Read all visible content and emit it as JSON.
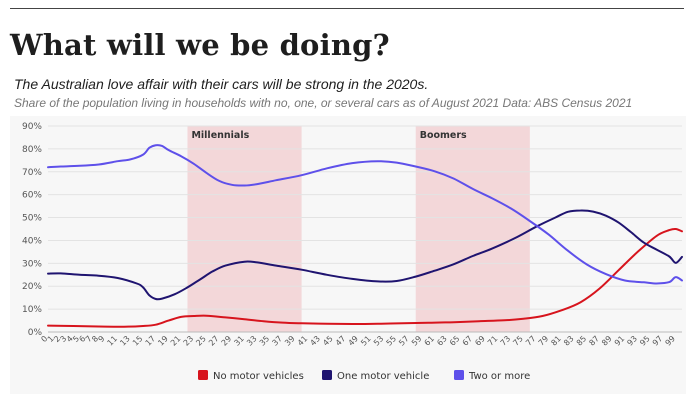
{
  "header": {
    "title": "What will we be doing?",
    "subtitle": "The Australian love affair with their cars will be strong in the 2020s.",
    "description": "Share of the population living in households with no, one, or several cars as of August 2021 Data: ABS Census 2021"
  },
  "chart_data": {
    "type": "line",
    "xlim": [
      0,
      100
    ],
    "ylim": [
      0,
      90
    ],
    "yticks": [
      "0%",
      "10%",
      "20%",
      "30%",
      "40%",
      "50%",
      "60%",
      "70%",
      "80%",
      "90%"
    ],
    "xticks": [
      "0",
      "1",
      "2",
      "3",
      "4",
      "5",
      "6",
      "7",
      "8",
      "9",
      "11",
      "13",
      "15",
      "17",
      "19",
      "21",
      "23",
      "25",
      "27",
      "29",
      "31",
      "33",
      "35",
      "37",
      "39",
      "41",
      "43",
      "45",
      "47",
      "49",
      "51",
      "53",
      "55",
      "57",
      "59",
      "61",
      "63",
      "65",
      "67",
      "69",
      "71",
      "73",
      "75",
      "77",
      "79",
      "81",
      "83",
      "85",
      "87",
      "89",
      "91",
      "93",
      "95",
      "97",
      "99"
    ],
    "xtick_values": [
      0,
      1,
      2,
      3,
      4,
      5,
      6,
      7,
      8,
      9,
      11,
      13,
      15,
      17,
      19,
      21,
      23,
      25,
      27,
      29,
      31,
      33,
      35,
      37,
      39,
      41,
      43,
      45,
      47,
      49,
      51,
      53,
      55,
      57,
      59,
      61,
      63,
      65,
      67,
      69,
      71,
      73,
      75,
      77,
      79,
      81,
      83,
      85,
      87,
      89,
      91,
      93,
      95,
      97,
      99
    ],
    "grid": "horizontal",
    "legend_position": "bottom",
    "bands": [
      {
        "label": "Millennials",
        "from": 22,
        "to": 40,
        "color": "#f3d7d9"
      },
      {
        "label": "Boomers",
        "from": 58,
        "to": 76,
        "color": "#f3d7d9"
      }
    ],
    "series": [
      {
        "name": "No motor vehicles",
        "color": "#d7141d",
        "points": [
          [
            0,
            2.8
          ],
          [
            4,
            2.6
          ],
          [
            8,
            2.4
          ],
          [
            12,
            2.3
          ],
          [
            15,
            2.6
          ],
          [
            17,
            3.2
          ],
          [
            19,
            5
          ],
          [
            21,
            6.6
          ],
          [
            23,
            7
          ],
          [
            25,
            7.1
          ],
          [
            28,
            6.4
          ],
          [
            31,
            5.6
          ],
          [
            34,
            4.7
          ],
          [
            37,
            4.1
          ],
          [
            40,
            3.8
          ],
          [
            44,
            3.6
          ],
          [
            48,
            3.5
          ],
          [
            52,
            3.6
          ],
          [
            56,
            3.8
          ],
          [
            60,
            4
          ],
          [
            64,
            4.3
          ],
          [
            68,
            4.7
          ],
          [
            72,
            5.1
          ],
          [
            75,
            5.8
          ],
          [
            78,
            7
          ],
          [
            81,
            9.5
          ],
          [
            84,
            13
          ],
          [
            87,
            19
          ],
          [
            90,
            27
          ],
          [
            93,
            35
          ],
          [
            96,
            42
          ],
          [
            98,
            44.5
          ],
          [
            99,
            45
          ],
          [
            100,
            44
          ]
        ]
      },
      {
        "name": "One motor vehicle",
        "color": "#1f1470",
        "points": [
          [
            0,
            25.5
          ],
          [
            2,
            25.6
          ],
          [
            5,
            25
          ],
          [
            8,
            24.6
          ],
          [
            11,
            23.6
          ],
          [
            14,
            21.2
          ],
          [
            15,
            19.5
          ],
          [
            16,
            16
          ],
          [
            17,
            14.4
          ],
          [
            18,
            14.6
          ],
          [
            20,
            16.5
          ],
          [
            22,
            19.5
          ],
          [
            24,
            23
          ],
          [
            26,
            26.5
          ],
          [
            28,
            29
          ],
          [
            31,
            30.7
          ],
          [
            33,
            30.4
          ],
          [
            36,
            29
          ],
          [
            40,
            27.2
          ],
          [
            44,
            25
          ],
          [
            48,
            23.2
          ],
          [
            52,
            22.1
          ],
          [
            55,
            22.3
          ],
          [
            58,
            24.2
          ],
          [
            61,
            26.8
          ],
          [
            64,
            29.6
          ],
          [
            67,
            33.2
          ],
          [
            70,
            36.4
          ],
          [
            74,
            41.5
          ],
          [
            77,
            46
          ],
          [
            80,
            50
          ],
          [
            82,
            52.5
          ],
          [
            84,
            53.1
          ],
          [
            86,
            52.6
          ],
          [
            88,
            50.8
          ],
          [
            90,
            47.8
          ],
          [
            92,
            43.5
          ],
          [
            94,
            39
          ],
          [
            96,
            36
          ],
          [
            98,
            33
          ],
          [
            99,
            30.2
          ],
          [
            100,
            32.8
          ]
        ]
      },
      {
        "name": "Two or more",
        "color": "#5e50ea",
        "points": [
          [
            0,
            72
          ],
          [
            2,
            72.3
          ],
          [
            5,
            72.6
          ],
          [
            8,
            73.2
          ],
          [
            11,
            74.6
          ],
          [
            13,
            75.4
          ],
          [
            15,
            77.5
          ],
          [
            16,
            80.5
          ],
          [
            17,
            81.6
          ],
          [
            18,
            81.3
          ],
          [
            19,
            79.5
          ],
          [
            21,
            76.8
          ],
          [
            23,
            73.5
          ],
          [
            25,
            69.5
          ],
          [
            27,
            66
          ],
          [
            29,
            64.3
          ],
          [
            31,
            64
          ],
          [
            33,
            64.6
          ],
          [
            36,
            66.3
          ],
          [
            40,
            68.5
          ],
          [
            44,
            71.5
          ],
          [
            48,
            73.8
          ],
          [
            52,
            74.6
          ],
          [
            55,
            74
          ],
          [
            58,
            72.3
          ],
          [
            61,
            70.2
          ],
          [
            64,
            67
          ],
          [
            67,
            62.5
          ],
          [
            70,
            58.5
          ],
          [
            73,
            54
          ],
          [
            76,
            48.5
          ],
          [
            79,
            42.5
          ],
          [
            82,
            35.5
          ],
          [
            85,
            29.5
          ],
          [
            88,
            25.3
          ],
          [
            91,
            22.5
          ],
          [
            94,
            21.7
          ],
          [
            96,
            21.2
          ],
          [
            98,
            21.8
          ],
          [
            99,
            24
          ],
          [
            100,
            22.5
          ]
        ]
      }
    ]
  }
}
